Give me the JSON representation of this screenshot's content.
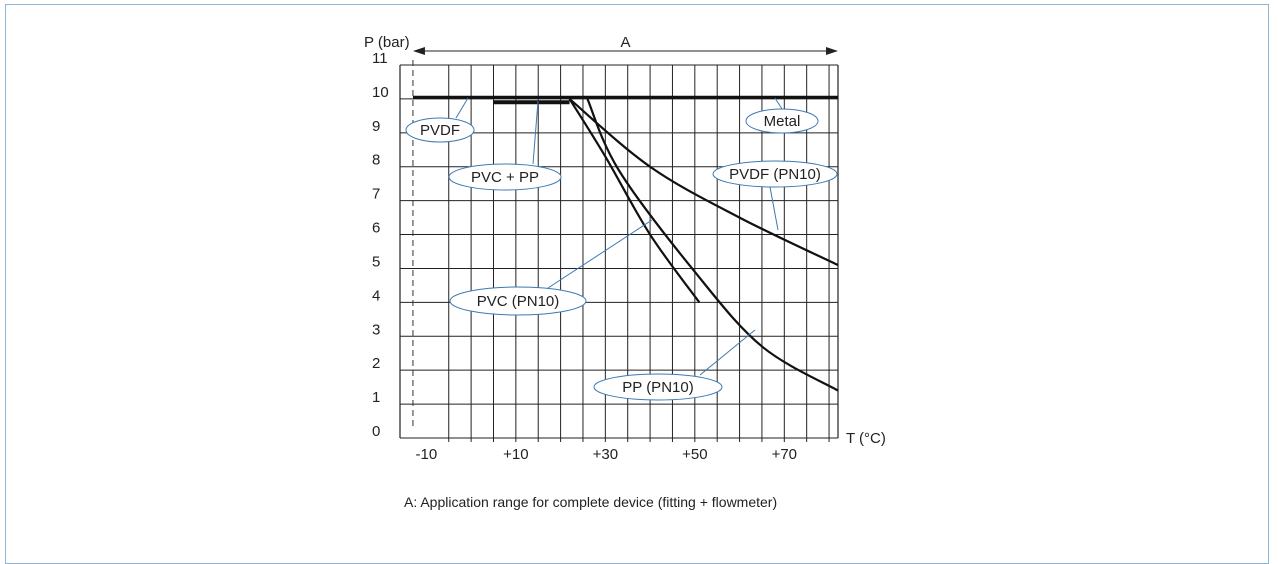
{
  "chart_data": {
    "type": "line",
    "ylabel": "P (bar)",
    "xlabel": "T (°C)",
    "xlim": [
      -15,
      82
    ],
    "ylim": [
      0,
      11
    ],
    "x_ticks": [
      "-10",
      "+10",
      "+30",
      "+50",
      "+70"
    ],
    "x_tick_values": [
      -10,
      10,
      30,
      50,
      70
    ],
    "y_ticks": [
      "0",
      "1",
      "2",
      "3",
      "4",
      "5",
      "6",
      "7",
      "8",
      "9",
      "10",
      "11"
    ],
    "grid": true,
    "range_marker": {
      "label": "A",
      "from": -13,
      "to": 82
    },
    "dashed_x": -13,
    "series": [
      {
        "name": "Metal",
        "x": [
          -13,
          82
        ],
        "y": [
          10.05,
          10.05
        ]
      },
      {
        "name": "PVC + PP",
        "x": [
          5,
          22
        ],
        "y": [
          9.9,
          9.9
        ]
      },
      {
        "name": "PVDF (PN10)",
        "x": [
          22,
          40,
          60,
          82
        ],
        "y": [
          10,
          8.0,
          6.5,
          5.1
        ]
      },
      {
        "name": "PVC (PN10)",
        "x": [
          22,
          30,
          40,
          51
        ],
        "y": [
          10,
          8.3,
          6.0,
          4.0
        ]
      },
      {
        "name": "PP (PN10)",
        "x": [
          26,
          33,
          50,
          65,
          82
        ],
        "y": [
          10,
          7.9,
          4.9,
          2.7,
          1.4
        ]
      }
    ],
    "callouts": [
      {
        "text": "PVDF"
      },
      {
        "text": "PVC + PP"
      },
      {
        "text": "Metal"
      },
      {
        "text": "PVDF (PN10)"
      },
      {
        "text": "PVC (PN10)"
      },
      {
        "text": "PP (PN10)"
      }
    ],
    "caption": "A: Application range for complete device (fitting + flowmeter)"
  },
  "colors": {
    "axis": "#222222",
    "grid": "#222222",
    "curve": "#111111",
    "callout": "#3d79b3",
    "frame": "#8fb4d6"
  }
}
